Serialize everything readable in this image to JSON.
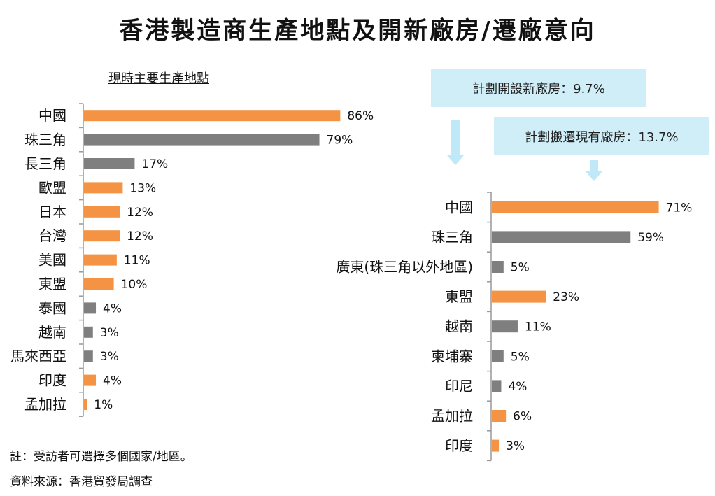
{
  "title": "香港製造商生產地點及開新廠房/遷廠意向",
  "left_subtitle": "現時主要生產地點",
  "callouts": {
    "new_factory": "計劃開設新廠房：9.7%",
    "relocate": "計劃搬遷現有廠房：13.7%"
  },
  "notes": {
    "note": "註：受訪者可選擇多個國家/地區。",
    "source": "資料來源：香港貿發局調查"
  },
  "colors": {
    "orange": "#f39343",
    "gray": "#7f7f7f",
    "callout_bg": "#cfeef8",
    "arrow": "#bfe8f8"
  },
  "chart_data": [
    {
      "type": "bar",
      "orientation": "horizontal",
      "title": "現時主要生產地點",
      "categories": [
        "中國",
        "珠三角",
        "長三角",
        "歐盟",
        "日本",
        "台灣",
        "美國",
        "東盟",
        "泰國",
        "越南",
        "馬來西亞",
        "印度",
        "孟加拉"
      ],
      "values": [
        86,
        79,
        17,
        13,
        12,
        12,
        11,
        10,
        4,
        3,
        3,
        4,
        1
      ],
      "value_labels": [
        "86%",
        "79%",
        "17%",
        "13%",
        "12%",
        "12%",
        "11%",
        "10%",
        "4%",
        "3%",
        "3%",
        "4%",
        "1%"
      ],
      "bar_colors": [
        "orange",
        "gray",
        "gray",
        "orange",
        "orange",
        "orange",
        "orange",
        "orange",
        "gray",
        "gray",
        "gray",
        "orange",
        "orange"
      ],
      "unit": "%",
      "grid": false
    },
    {
      "type": "bar",
      "orientation": "horizontal",
      "title": "",
      "categories": [
        "中國",
        "珠三角",
        "廣東(珠三角以外地區)",
        "東盟",
        "越南",
        "柬埔寨",
        "印尼",
        "孟加拉",
        "印度"
      ],
      "values": [
        71,
        59,
        5,
        23,
        11,
        5,
        4,
        6,
        3
      ],
      "value_labels": [
        "71%",
        "59%",
        "5%",
        "23%",
        "11%",
        "5%",
        "4%",
        "6%",
        "3%"
      ],
      "bar_colors": [
        "orange",
        "gray",
        "gray",
        "orange",
        "gray",
        "gray",
        "gray",
        "orange",
        "orange"
      ],
      "unit": "%",
      "grid": false
    }
  ]
}
